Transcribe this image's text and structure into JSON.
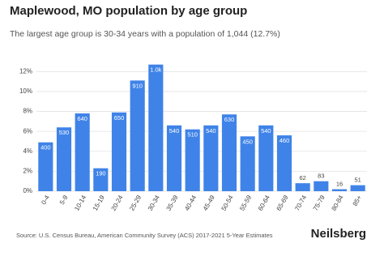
{
  "chart_data": {
    "type": "bar",
    "title": "Maplewood, MO population by age group",
    "subtitle": "The largest age group is 30-34 years with a population of 1,044 (12.7%)",
    "categories": [
      "0-4",
      "5-9",
      "10-14",
      "15-19",
      "20-24",
      "25-29",
      "30-34",
      "35-39",
      "40-44",
      "45-49",
      "50-54",
      "55-59",
      "60-64",
      "65-69",
      "70-74",
      "75-79",
      "80-84",
      "85+"
    ],
    "values": [
      4.9,
      6.4,
      7.8,
      2.3,
      7.9,
      11.1,
      12.7,
      6.6,
      6.2,
      6.6,
      7.7,
      5.5,
      6.6,
      5.6,
      0.8,
      1.0,
      0.2,
      0.6
    ],
    "data_labels": [
      "400",
      "530",
      "640",
      "190",
      "650",
      "910",
      "1.0k",
      "540",
      "510",
      "540",
      "630",
      "450",
      "540",
      "460",
      "62",
      "83",
      "16",
      "51"
    ],
    "color": "#3f83e8",
    "ylim": [
      0,
      13
    ],
    "yticks": [
      {
        "value": 0,
        "label": "0%"
      },
      {
        "value": 2,
        "label": "2%"
      },
      {
        "value": 4,
        "label": "4%"
      },
      {
        "value": 6,
        "label": "6%"
      },
      {
        "value": 8,
        "label": "8%"
      },
      {
        "value": 10,
        "label": "10%"
      },
      {
        "value": 12,
        "label": "12%"
      }
    ],
    "grid": true,
    "source": "Source: U.S. Census Bureau, American Community Survey (ACS) 2017-2021 5-Year Estimates",
    "brand": "Neilsberg"
  }
}
